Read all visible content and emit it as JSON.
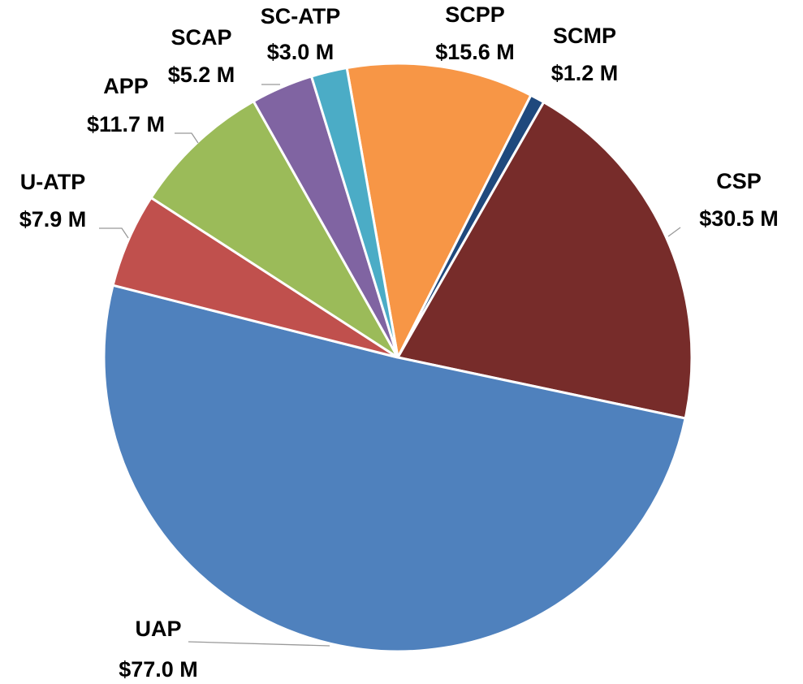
{
  "chart_data": {
    "type": "pie",
    "categories": [
      "SCPP",
      "SCMP",
      "CSP",
      "UAP",
      "U-ATP",
      "APP",
      "SCAP",
      "SC-ATP"
    ],
    "values": [
      15.6,
      1.2,
      30.5,
      77.0,
      7.9,
      11.7,
      5.2,
      3.0
    ],
    "value_labels": [
      "$15.6 M",
      "$1.2 M",
      "$30.5 M",
      "$77.0 M",
      "$7.9 M",
      "$11.7 M",
      "$5.2 M",
      "$3.0 M"
    ],
    "colors": [
      "#f79646",
      "#1f497d",
      "#772c2a",
      "#4f81bd",
      "#c0504d",
      "#9bbb59",
      "#8064a2",
      "#4bacc6"
    ]
  }
}
